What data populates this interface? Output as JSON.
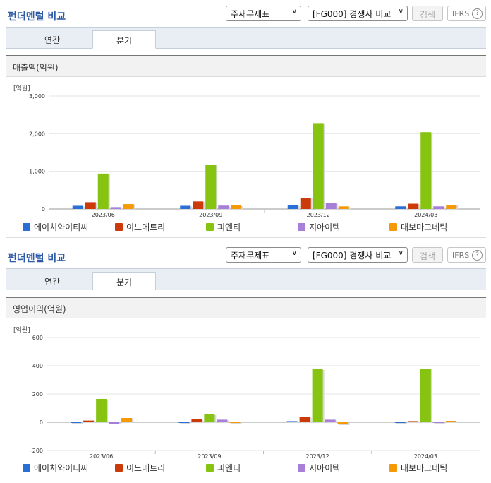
{
  "panels": [
    {
      "title": "펀더멘털 비교",
      "select1": "주재무제표",
      "select2": "[FG000] 경쟁사 비교",
      "search_btn": "검색",
      "ifrs": "IFRS",
      "help": "?",
      "tabs": [
        "연간",
        "분기"
      ],
      "active_tab": "분기",
      "section": "매출액(억원)",
      "unit": "[억원]"
    },
    {
      "title": "펀더멘털 비교",
      "select1": "주재무제표",
      "select2": "[FG000] 경쟁사 비교",
      "search_btn": "검색",
      "ifrs": "IFRS",
      "help": "?",
      "tabs": [
        "연간",
        "분기"
      ],
      "active_tab": "분기",
      "section": "영업이익(억원)",
      "unit": "[억원]"
    }
  ],
  "colors": {
    "에이치와이티씨": "#2a6ed8",
    "이노메트리": "#cc3a0a",
    "피엔티": "#86c411",
    "지아이텍": "#a77fd9",
    "대보마그네틱": "#f59a06"
  },
  "chart_data": [
    {
      "type": "bar",
      "title": "매출액(억원)",
      "ylabel": "[억원]",
      "categories": [
        "2023/06",
        "2023/09",
        "2023/12",
        "2024/03"
      ],
      "ylim": [
        0,
        3000
      ],
      "yticks": [
        0,
        1000,
        2000,
        3000
      ],
      "ytick_labels": [
        "0",
        "1,000",
        "2,000",
        "3,000"
      ],
      "series": [
        {
          "name": "에이치와이티씨",
          "values": [
            85,
            85,
            100,
            70
          ]
        },
        {
          "name": "이노메트리",
          "values": [
            180,
            200,
            300,
            140
          ]
        },
        {
          "name": "피엔티",
          "values": [
            940,
            1180,
            2280,
            2040
          ]
        },
        {
          "name": "지아이텍",
          "values": [
            50,
            90,
            150,
            70
          ]
        },
        {
          "name": "대보마그네틱",
          "values": [
            130,
            95,
            70,
            110
          ]
        }
      ]
    },
    {
      "type": "bar",
      "title": "영업이익(억원)",
      "ylabel": "[억원]",
      "categories": [
        "2023/06",
        "2023/09",
        "2023/12",
        "2024/03"
      ],
      "ylim": [
        -200,
        600
      ],
      "yticks": [
        -200,
        0,
        200,
        400,
        600
      ],
      "ytick_labels": [
        "-200",
        "0",
        "200",
        "400",
        "600"
      ],
      "series": [
        {
          "name": "에이치와이티씨",
          "values": [
            -5,
            0,
            8,
            0
          ]
        },
        {
          "name": "이노메트리",
          "values": [
            12,
            22,
            38,
            8
          ]
        },
        {
          "name": "피엔티",
          "values": [
            165,
            60,
            375,
            380
          ]
        },
        {
          "name": "지아이텍",
          "values": [
            -10,
            18,
            18,
            0
          ]
        },
        {
          "name": "대보마그네틱",
          "values": [
            30,
            0,
            -15,
            10
          ]
        }
      ]
    }
  ]
}
